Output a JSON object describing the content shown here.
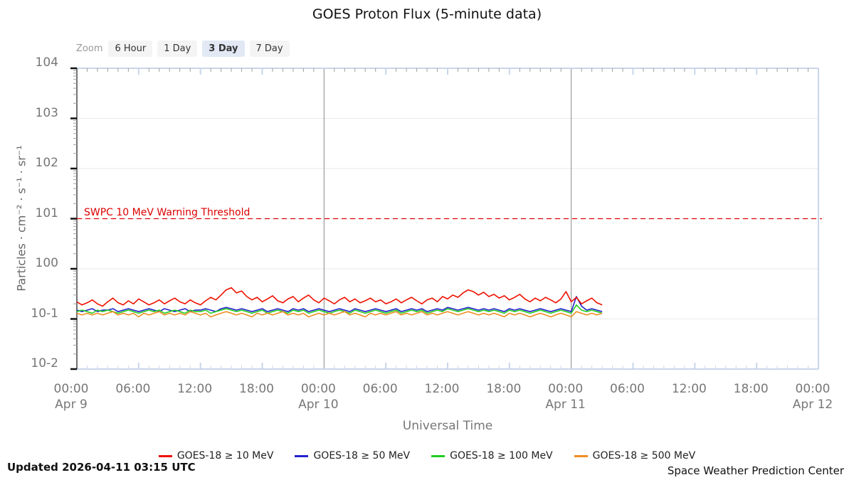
{
  "title": "GOES Proton Flux (5-minute data)",
  "toolbar": {
    "zoom_label": "Zoom",
    "buttons": [
      {
        "label": "6 Hour",
        "selected": false
      },
      {
        "label": "1 Day",
        "selected": false
      },
      {
        "label": "3 Day",
        "selected": true
      },
      {
        "label": "7 Day",
        "selected": false
      }
    ]
  },
  "footer": {
    "updated": "Updated 2026-04-11 03:15 UTC",
    "credit": "Space Weather Prediction Center"
  },
  "colors": {
    "axis_light_blue": "#c9d6ea",
    "grid_gray": "#e9e9e9",
    "day_line_gray": "#888888",
    "minor_tick_gray": "#a0a0a0",
    "left_axis_dark": "#444444",
    "major_tick_black": "#111111",
    "threshold_red": "#dd0000"
  },
  "chart_data": {
    "type": "line",
    "title": "GOES Proton Flux (5-minute data)",
    "xlabel": "Universal Time",
    "ylabel": "Particles · cm⁻² · s⁻¹ · sr⁻¹",
    "ylog": true,
    "ylim": [
      0.01,
      10000
    ],
    "y_ticks": [
      "104",
      "103",
      "102",
      "101",
      "100",
      "10-1",
      "10-2"
    ],
    "x_range_hours": [
      0,
      72
    ],
    "x_start_hours": 0,
    "x_step_hours": 0.5,
    "x_ticks": [
      {
        "hour": 0,
        "time": "00:00",
        "date": "Apr 9"
      },
      {
        "hour": 6,
        "time": "06:00",
        "date": ""
      },
      {
        "hour": 12,
        "time": "12:00",
        "date": ""
      },
      {
        "hour": 18,
        "time": "18:00",
        "date": ""
      },
      {
        "hour": 24,
        "time": "00:00",
        "date": "Apr 10"
      },
      {
        "hour": 30,
        "time": "06:00",
        "date": ""
      },
      {
        "hour": 36,
        "time": "12:00",
        "date": ""
      },
      {
        "hour": 42,
        "time": "18:00",
        "date": ""
      },
      {
        "hour": 48,
        "time": "00:00",
        "date": "Apr 11"
      },
      {
        "hour": 54,
        "time": "06:00",
        "date": ""
      },
      {
        "hour": 60,
        "time": "12:00",
        "date": ""
      },
      {
        "hour": 66,
        "time": "18:00",
        "date": ""
      },
      {
        "hour": 72,
        "time": "00:00",
        "date": "Apr 12"
      }
    ],
    "day_lines_hours": [
      24,
      48
    ],
    "legend_position": "bottom",
    "threshold": {
      "label": "SWPC 10 MeV Warning Threshold",
      "value": 10,
      "color": "#dd0000"
    },
    "series": [
      {
        "name": "GOES-18 ≥ 10 MeV",
        "color": "#ee1100",
        "values": [
          0.22,
          0.19,
          0.21,
          0.24,
          0.2,
          0.18,
          0.22,
          0.26,
          0.21,
          0.19,
          0.23,
          0.2,
          0.25,
          0.22,
          0.19,
          0.21,
          0.24,
          0.2,
          0.23,
          0.26,
          0.22,
          0.2,
          0.24,
          0.21,
          0.19,
          0.23,
          0.27,
          0.24,
          0.3,
          0.38,
          0.42,
          0.33,
          0.36,
          0.28,
          0.24,
          0.27,
          0.22,
          0.25,
          0.29,
          0.23,
          0.21,
          0.25,
          0.28,
          0.22,
          0.26,
          0.3,
          0.24,
          0.21,
          0.26,
          0.23,
          0.2,
          0.24,
          0.27,
          0.22,
          0.25,
          0.21,
          0.23,
          0.26,
          0.22,
          0.24,
          0.2,
          0.22,
          0.25,
          0.21,
          0.24,
          0.27,
          0.23,
          0.2,
          0.24,
          0.26,
          0.22,
          0.28,
          0.25,
          0.3,
          0.27,
          0.33,
          0.38,
          0.35,
          0.3,
          0.34,
          0.28,
          0.31,
          0.26,
          0.29,
          0.24,
          0.27,
          0.31,
          0.25,
          0.22,
          0.26,
          0.23,
          0.27,
          0.24,
          0.21,
          0.25,
          0.35,
          0.22,
          0.27,
          0.2,
          0.23,
          0.26,
          0.21,
          0.19
        ]
      },
      {
        "name": "GOES-18 ≥ 50 MeV",
        "color": "#2222cc",
        "values": [
          0.15,
          0.14,
          0.15,
          0.16,
          0.14,
          0.15,
          0.15,
          0.16,
          0.14,
          0.15,
          0.16,
          0.15,
          0.14,
          0.15,
          0.16,
          0.15,
          0.14,
          0.16,
          0.15,
          0.14,
          0.15,
          0.16,
          0.14,
          0.15,
          0.15,
          0.16,
          0.15,
          0.14,
          0.16,
          0.17,
          0.16,
          0.15,
          0.16,
          0.15,
          0.14,
          0.15,
          0.16,
          0.14,
          0.15,
          0.16,
          0.15,
          0.14,
          0.16,
          0.15,
          0.16,
          0.14,
          0.15,
          0.16,
          0.15,
          0.14,
          0.15,
          0.16,
          0.15,
          0.14,
          0.16,
          0.15,
          0.14,
          0.15,
          0.16,
          0.15,
          0.14,
          0.15,
          0.16,
          0.14,
          0.15,
          0.16,
          0.15,
          0.16,
          0.14,
          0.15,
          0.16,
          0.15,
          0.17,
          0.16,
          0.15,
          0.16,
          0.17,
          0.16,
          0.15,
          0.16,
          0.15,
          0.16,
          0.15,
          0.14,
          0.16,
          0.15,
          0.16,
          0.15,
          0.14,
          0.15,
          0.16,
          0.15,
          0.14,
          0.15,
          0.16,
          0.15,
          0.14,
          0.28,
          0.18,
          0.15,
          0.16,
          0.15,
          0.14
        ]
      },
      {
        "name": "GOES-18 ≥ 100 MeV",
        "color": "#22cc22",
        "values": [
          0.14,
          0.15,
          0.14,
          0.13,
          0.15,
          0.14,
          0.15,
          0.14,
          0.13,
          0.14,
          0.15,
          0.14,
          0.13,
          0.14,
          0.15,
          0.14,
          0.15,
          0.13,
          0.14,
          0.15,
          0.14,
          0.13,
          0.15,
          0.14,
          0.14,
          0.15,
          0.13,
          0.14,
          0.15,
          0.16,
          0.15,
          0.14,
          0.15,
          0.14,
          0.13,
          0.14,
          0.15,
          0.13,
          0.14,
          0.15,
          0.14,
          0.13,
          0.15,
          0.14,
          0.15,
          0.13,
          0.14,
          0.15,
          0.14,
          0.13,
          0.14,
          0.15,
          0.14,
          0.13,
          0.15,
          0.14,
          0.13,
          0.14,
          0.15,
          0.14,
          0.13,
          0.14,
          0.15,
          0.13,
          0.14,
          0.15,
          0.14,
          0.15,
          0.13,
          0.14,
          0.15,
          0.14,
          0.16,
          0.15,
          0.14,
          0.15,
          0.16,
          0.15,
          0.14,
          0.15,
          0.14,
          0.15,
          0.14,
          0.13,
          0.15,
          0.14,
          0.15,
          0.14,
          0.13,
          0.14,
          0.15,
          0.14,
          0.13,
          0.14,
          0.15,
          0.14,
          0.13,
          0.19,
          0.15,
          0.14,
          0.15,
          0.14,
          0.13
        ]
      },
      {
        "name": "GOES-18 ≥ 500 MeV",
        "color": "#ee8d22",
        "values": [
          0.13,
          0.12,
          0.13,
          0.12,
          0.13,
          0.12,
          0.13,
          0.14,
          0.12,
          0.13,
          0.12,
          0.13,
          0.11,
          0.13,
          0.12,
          0.13,
          0.14,
          0.12,
          0.13,
          0.12,
          0.13,
          0.12,
          0.14,
          0.13,
          0.12,
          0.13,
          0.11,
          0.12,
          0.13,
          0.14,
          0.13,
          0.12,
          0.13,
          0.12,
          0.11,
          0.13,
          0.12,
          0.13,
          0.12,
          0.13,
          0.14,
          0.12,
          0.13,
          0.12,
          0.13,
          0.11,
          0.12,
          0.13,
          0.12,
          0.13,
          0.12,
          0.13,
          0.14,
          0.12,
          0.13,
          0.12,
          0.11,
          0.13,
          0.12,
          0.13,
          0.12,
          0.13,
          0.14,
          0.12,
          0.13,
          0.12,
          0.13,
          0.14,
          0.12,
          0.13,
          0.12,
          0.13,
          0.14,
          0.13,
          0.12,
          0.13,
          0.14,
          0.13,
          0.12,
          0.13,
          0.12,
          0.13,
          0.12,
          0.11,
          0.13,
          0.12,
          0.13,
          0.12,
          0.11,
          0.12,
          0.13,
          0.12,
          0.11,
          0.12,
          0.13,
          0.12,
          0.11,
          0.14,
          0.13,
          0.12,
          0.13,
          0.12,
          0.13
        ]
      }
    ]
  }
}
